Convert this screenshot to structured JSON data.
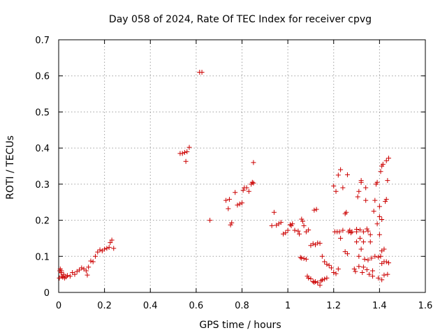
{
  "chart_data": {
    "type": "scatter",
    "title": "Day 058 of 2024, Rate Of TEC Index for receiver cpvg",
    "xlabel": "GPS time / hours",
    "ylabel": "ROTI / TECUs",
    "xlim": [
      0,
      1.6
    ],
    "ylim": [
      0,
      0.7
    ],
    "grid": true,
    "x_ticks": [
      "0",
      "0.2",
      "0.4",
      "0.6",
      "0.8",
      "1",
      "1.2",
      "1.4",
      "1.6"
    ],
    "y_ticks": [
      "0",
      "0.1",
      "0.2",
      "0.3",
      "0.4",
      "0.5",
      "0.6",
      "0.7"
    ],
    "marker": "+",
    "marker_color": "#cc0000",
    "series": [
      {
        "points": [
          [
            0.003,
            0.04
          ],
          [
            0.005,
            0.06
          ],
          [
            0.007,
            0.065
          ],
          [
            0.01,
            0.055
          ],
          [
            0.012,
            0.06
          ],
          [
            0.014,
            0.045
          ],
          [
            0.018,
            0.042
          ],
          [
            0.022,
            0.05
          ],
          [
            0.026,
            0.04
          ],
          [
            0.032,
            0.043
          ],
          [
            0.038,
            0.047
          ],
          [
            0.05,
            0.045
          ],
          [
            0.06,
            0.055
          ],
          [
            0.07,
            0.05
          ],
          [
            0.08,
            0.058
          ],
          [
            0.09,
            0.062
          ],
          [
            0.1,
            0.068
          ],
          [
            0.11,
            0.065
          ],
          [
            0.12,
            0.06
          ],
          [
            0.125,
            0.048
          ],
          [
            0.13,
            0.07
          ],
          [
            0.14,
            0.087
          ],
          [
            0.15,
            0.085
          ],
          [
            0.16,
            0.1
          ],
          [
            0.17,
            0.112
          ],
          [
            0.18,
            0.118
          ],
          [
            0.19,
            0.115
          ],
          [
            0.2,
            0.12
          ],
          [
            0.21,
            0.122
          ],
          [
            0.22,
            0.125
          ],
          [
            0.225,
            0.138
          ],
          [
            0.232,
            0.145
          ],
          [
            0.24,
            0.122
          ],
          [
            0.53,
            0.385
          ],
          [
            0.54,
            0.385
          ],
          [
            0.55,
            0.388
          ],
          [
            0.555,
            0.363
          ],
          [
            0.56,
            0.39
          ],
          [
            0.57,
            0.402
          ],
          [
            0.615,
            0.61
          ],
          [
            0.625,
            0.61
          ],
          [
            0.66,
            0.2
          ],
          [
            0.73,
            0.255
          ],
          [
            0.74,
            0.232
          ],
          [
            0.745,
            0.258
          ],
          [
            0.75,
            0.187
          ],
          [
            0.755,
            0.193
          ],
          [
            0.77,
            0.277
          ],
          [
            0.78,
            0.242
          ],
          [
            0.79,
            0.245
          ],
          [
            0.8,
            0.248
          ],
          [
            0.805,
            0.283
          ],
          [
            0.81,
            0.29
          ],
          [
            0.82,
            0.29
          ],
          [
            0.83,
            0.28
          ],
          [
            0.84,
            0.3
          ],
          [
            0.845,
            0.305
          ],
          [
            0.85,
            0.36
          ],
          [
            0.85,
            0.303
          ],
          [
            0.93,
            0.185
          ],
          [
            0.94,
            0.222
          ],
          [
            0.95,
            0.186
          ],
          [
            0.96,
            0.19
          ],
          [
            0.97,
            0.194
          ],
          [
            0.98,
            0.162
          ],
          [
            0.99,
            0.165
          ],
          [
            1.0,
            0.172
          ],
          [
            1.01,
            0.188
          ],
          [
            1.015,
            0.185
          ],
          [
            1.02,
            0.19
          ],
          [
            1.03,
            0.172
          ],
          [
            1.045,
            0.17
          ],
          [
            1.05,
            0.162
          ],
          [
            1.06,
            0.203
          ],
          [
            1.065,
            0.197
          ],
          [
            1.07,
            0.185
          ],
          [
            1.08,
            0.168
          ],
          [
            1.09,
            0.173
          ],
          [
            1.055,
            0.097
          ],
          [
            1.06,
            0.095
          ],
          [
            1.07,
            0.094
          ],
          [
            1.08,
            0.092
          ],
          [
            1.085,
            0.045
          ],
          [
            1.09,
            0.04
          ],
          [
            1.1,
            0.038
          ],
          [
            1.11,
            0.03
          ],
          [
            1.115,
            0.028
          ],
          [
            1.12,
            0.03
          ],
          [
            1.13,
            0.027
          ],
          [
            1.14,
            0.02
          ],
          [
            1.145,
            0.032
          ],
          [
            1.15,
            0.035
          ],
          [
            1.16,
            0.037
          ],
          [
            1.17,
            0.04
          ],
          [
            1.1,
            0.13
          ],
          [
            1.11,
            0.135
          ],
          [
            1.12,
            0.132
          ],
          [
            1.115,
            0.228
          ],
          [
            1.125,
            0.23
          ],
          [
            1.13,
            0.137
          ],
          [
            1.14,
            0.136
          ],
          [
            1.15,
            0.1
          ],
          [
            1.16,
            0.085
          ],
          [
            1.17,
            0.078
          ],
          [
            1.18,
            0.075
          ],
          [
            1.19,
            0.068
          ],
          [
            1.2,
            0.055
          ],
          [
            1.21,
            0.052
          ],
          [
            1.22,
            0.065
          ],
          [
            1.2,
            0.295
          ],
          [
            1.205,
            0.168
          ],
          [
            1.21,
            0.28
          ],
          [
            1.215,
            0.168
          ],
          [
            1.22,
            0.325
          ],
          [
            1.23,
            0.34
          ],
          [
            1.225,
            0.168
          ],
          [
            1.23,
            0.15
          ],
          [
            1.24,
            0.29
          ],
          [
            1.24,
            0.172
          ],
          [
            1.25,
            0.218
          ],
          [
            1.255,
            0.222
          ],
          [
            1.25,
            0.113
          ],
          [
            1.26,
            0.107
          ],
          [
            1.265,
            0.168
          ],
          [
            1.27,
            0.172
          ],
          [
            1.26,
            0.326
          ],
          [
            1.275,
            0.165
          ],
          [
            1.28,
            0.168
          ],
          [
            1.29,
            0.065
          ],
          [
            1.295,
            0.058
          ],
          [
            1.3,
            0.168
          ],
          [
            1.305,
            0.265
          ],
          [
            1.31,
            0.28
          ],
          [
            1.3,
            0.175
          ],
          [
            1.3,
            0.14
          ],
          [
            1.31,
            0.072
          ],
          [
            1.31,
            0.1
          ],
          [
            1.315,
            0.173
          ],
          [
            1.315,
            0.15
          ],
          [
            1.32,
            0.305
          ],
          [
            1.32,
            0.31
          ],
          [
            1.32,
            0.12
          ],
          [
            1.325,
            0.055
          ],
          [
            1.33,
            0.07
          ],
          [
            1.33,
            0.168
          ],
          [
            1.33,
            0.14
          ],
          [
            1.335,
            0.092
          ],
          [
            1.34,
            0.255
          ],
          [
            1.34,
            0.29
          ],
          [
            1.345,
            0.176
          ],
          [
            1.345,
            0.063
          ],
          [
            1.35,
            0.17
          ],
          [
            1.35,
            0.09
          ],
          [
            1.355,
            0.05
          ],
          [
            1.36,
            0.16
          ],
          [
            1.36,
            0.14
          ],
          [
            1.365,
            0.095
          ],
          [
            1.37,
            0.06
          ],
          [
            1.37,
            0.045
          ],
          [
            1.375,
            0.225
          ],
          [
            1.38,
            0.255
          ],
          [
            1.38,
            0.1
          ],
          [
            1.385,
            0.3
          ],
          [
            1.39,
            0.305
          ],
          [
            1.39,
            0.19
          ],
          [
            1.395,
            0.098
          ],
          [
            1.395,
            0.04
          ],
          [
            1.4,
            0.238
          ],
          [
            1.4,
            0.21
          ],
          [
            1.4,
            0.16
          ],
          [
            1.405,
            0.335
          ],
          [
            1.405,
            0.1
          ],
          [
            1.41,
            0.35
          ],
          [
            1.41,
            0.202
          ],
          [
            1.41,
            0.115
          ],
          [
            1.41,
            0.08
          ],
          [
            1.41,
            0.035
          ],
          [
            1.415,
            0.355
          ],
          [
            1.42,
            0.12
          ],
          [
            1.42,
            0.085
          ],
          [
            1.42,
            0.048
          ],
          [
            1.425,
            0.252
          ],
          [
            1.43,
            0.365
          ],
          [
            1.43,
            0.258
          ],
          [
            1.43,
            0.085
          ],
          [
            1.435,
            0.31
          ],
          [
            1.435,
            0.05
          ],
          [
            1.44,
            0.372
          ],
          [
            1.44,
            0.082
          ]
        ]
      }
    ]
  }
}
